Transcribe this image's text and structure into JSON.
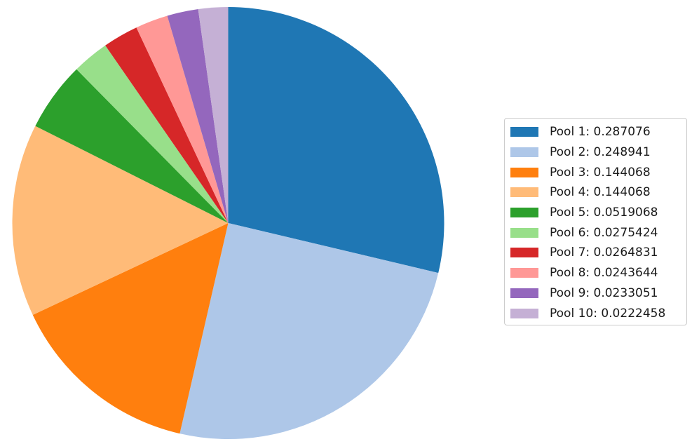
{
  "chart_data": {
    "type": "pie",
    "title": "",
    "start_angle_deg": 90,
    "direction": "clockwise",
    "legend_position": "right",
    "slices": [
      {
        "label": "Pool 1: 0.287076",
        "value": 0.287076,
        "color": "#1f77b4"
      },
      {
        "label": "Pool 2: 0.248941",
        "value": 0.248941,
        "color": "#aec7e8"
      },
      {
        "label": "Pool 3: 0.144068",
        "value": 0.144068,
        "color": "#ff7f0e"
      },
      {
        "label": "Pool 4: 0.144068",
        "value": 0.144068,
        "color": "#ffbb78"
      },
      {
        "label": "Pool 5: 0.0519068",
        "value": 0.0519068,
        "color": "#2ca02c"
      },
      {
        "label": "Pool 6: 0.0275424",
        "value": 0.0275424,
        "color": "#98df8a"
      },
      {
        "label": "Pool 7: 0.0264831",
        "value": 0.0264831,
        "color": "#d62728"
      },
      {
        "label": "Pool 8: 0.0243644",
        "value": 0.0243644,
        "color": "#ff9896"
      },
      {
        "label": "Pool 9: 0.0233051",
        "value": 0.0233051,
        "color": "#9467bd"
      },
      {
        "label": "Pool 10: 0.0222458",
        "value": 0.0222458,
        "color": "#c5b0d5"
      }
    ]
  }
}
